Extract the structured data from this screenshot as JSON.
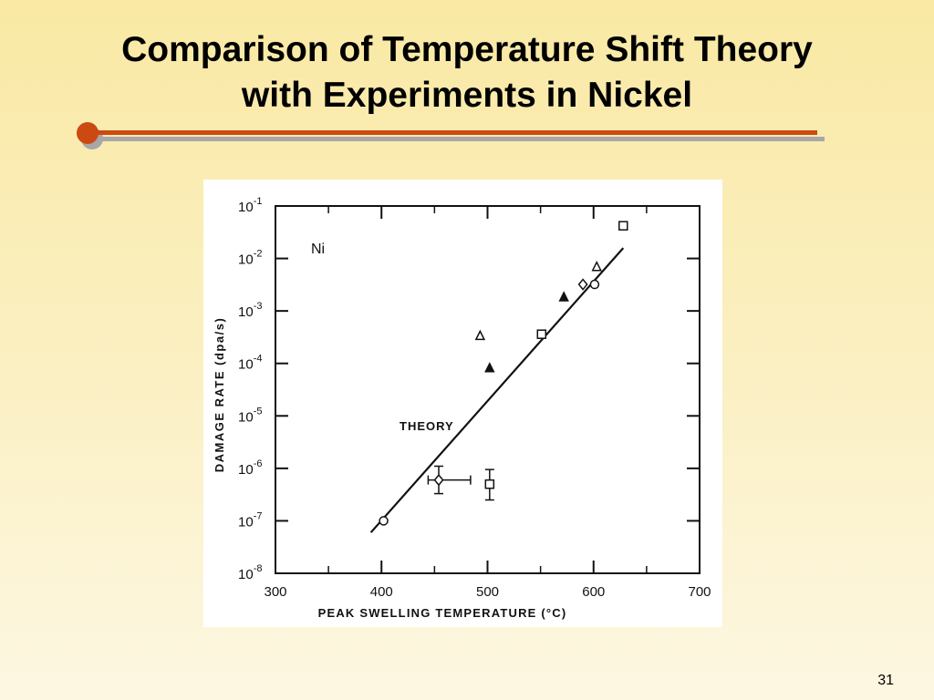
{
  "slide": {
    "title_line1": "Comparison of Temperature Shift Theory",
    "title_line2": "with Experiments in Nickel",
    "page_number": "31"
  },
  "colors": {
    "accent": "#cc4a12",
    "rule_shadow": "#a7a7a7",
    "background_top": "#f9e9a4",
    "background_bottom": "#fdf7e2",
    "ink": "#111111"
  },
  "chart_data": {
    "type": "scatter",
    "xlabel": "PEAK SWELLING TEMPERATURE (°C)",
    "ylabel": "DAMAGE RATE (dpa/s)",
    "xlim": [
      300,
      700
    ],
    "ylim": [
      1e-08,
      0.1
    ],
    "y_scale": "log",
    "x_ticks": [
      "300",
      "400",
      "500",
      "600",
      "700"
    ],
    "y_ticks": [
      {
        "base": "10",
        "exp": "-8"
      },
      {
        "base": "10",
        "exp": "-7"
      },
      {
        "base": "10",
        "exp": "-6"
      },
      {
        "base": "10",
        "exp": "-5"
      },
      {
        "base": "10",
        "exp": "-4"
      },
      {
        "base": "10",
        "exp": "-3"
      },
      {
        "base": "10",
        "exp": "-2"
      },
      {
        "base": "10",
        "exp": "-1"
      }
    ],
    "annotations": {
      "material": "Ni",
      "theory_label": "THEORY"
    },
    "theory_line": {
      "x": [
        390,
        628
      ],
      "y": [
        6e-08,
        0.0158
      ]
    },
    "points": [
      {
        "marker": "circle",
        "x": 402,
        "y": 1e-07
      },
      {
        "marker": "diamond",
        "x": 454,
        "y": 6e-07,
        "x_err": [
          444,
          484
        ],
        "y_err": [
          3.3e-07,
          1.1e-06
        ]
      },
      {
        "marker": "square",
        "x": 502,
        "y": 5e-07,
        "y_err": [
          2.5e-07,
          9.5e-07
        ]
      },
      {
        "marker": "triangle",
        "x": 493,
        "y": 0.00033
      },
      {
        "marker": "triangle-filled",
        "x": 502,
        "y": 8e-05
      },
      {
        "marker": "square",
        "x": 551,
        "y": 0.00036
      },
      {
        "marker": "triangle-filled",
        "x": 572,
        "y": 0.0018
      },
      {
        "marker": "diamond",
        "x": 590,
        "y": 0.0032
      },
      {
        "marker": "circle",
        "x": 601,
        "y": 0.0032
      },
      {
        "marker": "triangle",
        "x": 603,
        "y": 0.0068
      },
      {
        "marker": "square",
        "x": 628,
        "y": 0.042
      }
    ]
  }
}
